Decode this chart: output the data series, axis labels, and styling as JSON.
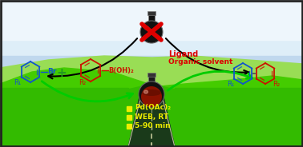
{
  "sky_top": "#f0f8ff",
  "sky_mid": "#c8dff0",
  "sky_horizon": "#a0c8e8",
  "hill_left_color": "#55cc11",
  "hill_right_color": "#44bb00",
  "hill_back_color": "#88dd44",
  "grass_fore_color": "#33bb00",
  "road_color": "#1a3a1a",
  "road_stripe": "#cccc88",
  "text_ligand": "Ligand",
  "text_solvent": "Organic solvent",
  "text_pd": "Pd(OAc)₂",
  "text_web": "WEB, RT",
  "text_time": "5-90 min",
  "cross_color": "#dd0000",
  "blue_color": "#1155cc",
  "red_color": "#cc1100",
  "yellow_color": "#eeee00",
  "border_color": "#222222",
  "figsize": [
    3.78,
    1.84
  ],
  "dpi": 100
}
